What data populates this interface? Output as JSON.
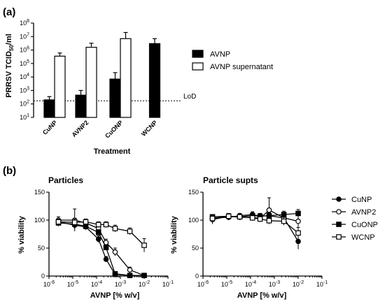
{
  "figure": {
    "label_a": "(a)",
    "label_b": "(b)"
  },
  "chart_data": [
    {
      "type": "bar",
      "ylabel": "PRRSV TCID50/ml",
      "xlabel": "Treatment",
      "yscale": "log",
      "ylim": [
        10,
        100000000
      ],
      "yticks": [
        10,
        100,
        1000,
        10000,
        100000,
        1000000,
        10000000,
        100000000
      ],
      "categories": [
        "CuNP",
        "AVNP2",
        "CuONP",
        "WCNP"
      ],
      "series": [
        {
          "name": "AVNP",
          "color": "#000000",
          "values": [
            200,
            450,
            7000,
            3000000
          ],
          "err_up": [
            350,
            1000,
            21000,
            7000000
          ]
        },
        {
          "name": "AVNP supernatant",
          "color": "#ffffff",
          "values": [
            350000,
            1600000,
            7000000,
            null
          ],
          "err_up": [
            600000,
            3200000,
            20000000,
            null
          ]
        }
      ],
      "reference_line": {
        "label": "LoD",
        "y": 170
      }
    },
    {
      "type": "line",
      "title": "Particles",
      "xlabel": "AVNP [% w/v]",
      "ylabel": "% viability",
      "xscale": "log",
      "xlim": [
        1e-06,
        0.1
      ],
      "ylim": [
        0,
        150
      ],
      "yticks": [
        0,
        50,
        100,
        150
      ],
      "series": [
        {
          "name": "CuNP",
          "marker": "filled-circle",
          "x": [
            2.5e-06,
            1.2e-05,
            3.5e-05,
            0.00012,
            0.00025,
            0.0006,
            0.0025,
            0.01
          ],
          "y": [
            97,
            91,
            88,
            66,
            30,
            3,
            1,
            1
          ],
          "err": [
            5,
            6,
            5,
            6,
            5,
            1,
            1,
            1
          ]
        },
        {
          "name": "AVNP2",
          "marker": "open-circle",
          "x": [
            2.5e-06,
            1.2e-05,
            3.5e-05,
            0.00012,
            0.00025,
            0.0006,
            0.0025,
            0.01
          ],
          "y": [
            100,
            100,
            95,
            85,
            60,
            43,
            11,
            1
          ],
          "err": [
            6,
            20,
            6,
            6,
            6,
            7,
            5,
            1
          ]
        },
        {
          "name": "CuONP",
          "marker": "filled-square",
          "x": [
            2.5e-06,
            1.2e-05,
            3.5e-05,
            0.00012,
            0.00025,
            0.0006,
            0.0025,
            0.01
          ],
          "y": [
            95,
            93,
            89,
            78,
            51,
            4,
            1,
            1
          ],
          "err": [
            6,
            5,
            5,
            5,
            4,
            2,
            1,
            1
          ]
        },
        {
          "name": "WCNP",
          "marker": "open-square",
          "x": [
            2.5e-06,
            1.2e-05,
            3.5e-05,
            0.00012,
            0.00025,
            0.0006,
            0.0025,
            0.01
          ],
          "y": [
            97,
            96,
            97,
            92,
            92,
            85,
            80,
            55
          ],
          "err": [
            5,
            6,
            5,
            5,
            5,
            6,
            6,
            12
          ]
        }
      ]
    },
    {
      "type": "line",
      "title": "Particle supts",
      "xlabel": "AVNP [% w/v]",
      "ylabel": "% viability",
      "xscale": "log",
      "xlim": [
        1e-06,
        0.1
      ],
      "ylim": [
        0,
        150
      ],
      "yticks": [
        0,
        50,
        100,
        150
      ],
      "series": [
        {
          "name": "CuNP",
          "marker": "filled-circle",
          "x": [
            2.5e-06,
            1.2e-05,
            3.5e-05,
            0.00012,
            0.00025,
            0.0006,
            0.0025,
            0.01
          ],
          "y": [
            104,
            105,
            108,
            110,
            107,
            108,
            104,
            62
          ],
          "err": [
            6,
            5,
            4,
            5,
            5,
            6,
            8,
            14
          ]
        },
        {
          "name": "AVNP2",
          "marker": "open-circle",
          "x": [
            2.5e-06,
            1.2e-05,
            3.5e-05,
            0.00012,
            0.00025,
            0.0006,
            0.0025,
            0.01
          ],
          "y": [
            101,
            107,
            105,
            105,
            103,
            118,
            104,
            98
          ],
          "err": [
            8,
            5,
            4,
            5,
            6,
            22,
            6,
            10
          ]
        },
        {
          "name": "CuONP",
          "marker": "filled-square",
          "x": [
            2.5e-06,
            1.2e-05,
            3.5e-05,
            0.00012,
            0.00025,
            0.0006,
            0.0025,
            0.01
          ],
          "y": [
            106,
            107,
            106,
            108,
            107,
            108,
            110,
            112
          ],
          "err": [
            4,
            4,
            4,
            4,
            5,
            5,
            6,
            7
          ]
        },
        {
          "name": "WCNP",
          "marker": "open-square",
          "x": [
            2.5e-06,
            1.2e-05,
            3.5e-05,
            0.00012,
            0.00025,
            0.0006,
            0.0025,
            0.01
          ],
          "y": [
            103,
            107,
            106,
            104,
            102,
            99,
            98,
            77
          ],
          "err": [
            5,
            4,
            4,
            5,
            5,
            6,
            7,
            10
          ]
        }
      ],
      "legend": [
        "CuNP",
        "AVNP2",
        "CuONP",
        "WCNP"
      ]
    }
  ]
}
